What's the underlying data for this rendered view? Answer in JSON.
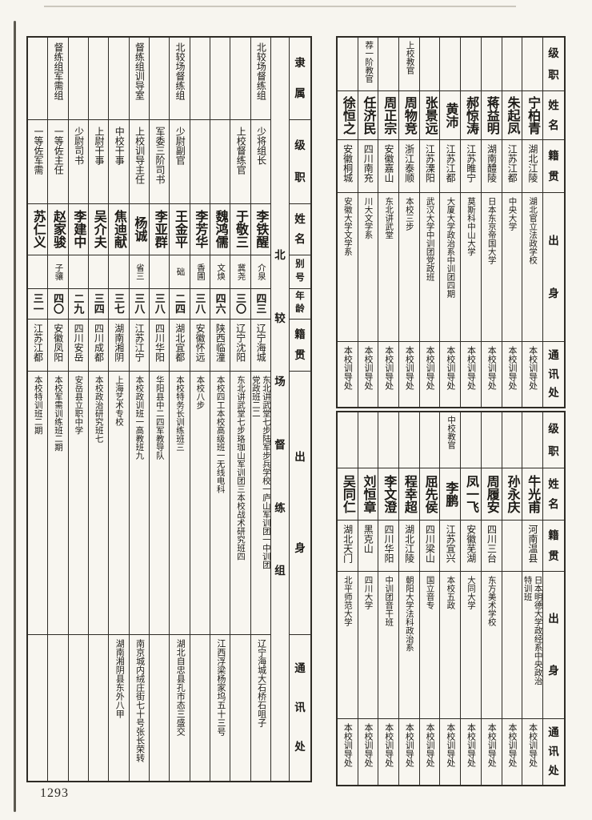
{
  "page": {
    "number": "1293"
  },
  "left_table": {
    "section_label": "北较场督练组",
    "headers": [
      "隶属",
      "级职",
      "姓名",
      "别号",
      "年龄",
      "籍贯",
      "出身",
      "通讯处"
    ],
    "rows_right_to_left": [
      {
        "affiliation": "北较场督练组",
        "rank": "少将组长",
        "name": "李铁醒",
        "alias": "介泉",
        "age": "四三",
        "origin": "辽宁海城",
        "background": "东北讲武堂七步陆军步兵学校一庐山军训团一中训团|党政班二二",
        "contact": "辽宁海城大石桥石咀子"
      },
      {
        "affiliation": "",
        "rank": "上校督练官",
        "name": "于敬三",
        "alias": "冀尧",
        "age": "三〇",
        "origin": "辽宁沈阳",
        "background": "东北讲武堂七步珞珈山军训团三本校战术研究班四",
        "contact": ""
      },
      {
        "affiliation": "",
        "rank": "",
        "name": "魏鸿儒",
        "alias": "文焕",
        "age": "四六",
        "origin": "陕西临潼",
        "background": "本校四工本校高级班一无线电科",
        "contact": "江西浮梁杨家坞五十三号"
      },
      {
        "affiliation": "",
        "rank": "",
        "name": "李芳华",
        "alias": "香圃",
        "age": "三八",
        "origin": "安徽怀远",
        "background": "本校八步",
        "contact": ""
      },
      {
        "affiliation": "北较场督练组",
        "rank": "少尉副官",
        "name": "王金平",
        "alias": "础",
        "age": "二四",
        "origin": "湖北宜都",
        "background": "本校特务长训练班三",
        "contact": "湖北自忠县孔市态三盛交"
      },
      {
        "affiliation": "",
        "rank": "军委三阶司书",
        "name": "李亚群",
        "alias": "",
        "age": "三八",
        "origin": "四川华阳",
        "background": "华阳县中二四军教导队",
        "contact": ""
      },
      {
        "affiliation": "督练组训导室",
        "rank": "上校训导主任",
        "name": "杨诚",
        "alias": "省三",
        "age": "三八",
        "origin": "江苏江宁",
        "background": "本校政训班一高教班九",
        "contact": "南京城内绒庄街七十号张长荣转"
      },
      {
        "affiliation": "",
        "rank": "中校干事",
        "name": "焦迪献",
        "alias": "",
        "age": "三七",
        "origin": "湖南湘阴",
        "background": "上海艺术专校",
        "contact": "湖南湘阴县东外八甲"
      },
      {
        "affiliation": "",
        "rank": "上尉干事",
        "name": "吴介夫",
        "alias": "",
        "age": "三四",
        "origin": "四川成都",
        "background": "本校政治研究班七",
        "contact": ""
      },
      {
        "affiliation": "",
        "rank": "少尉司书",
        "name": "李建中",
        "alias": "",
        "age": "二九",
        "origin": "四川安岳",
        "background": "安岳县立职中学",
        "contact": ""
      },
      {
        "affiliation": "督练组军需组",
        "rank": "一等佐主任",
        "name": "赵家骏",
        "alias": "子骧",
        "age": "四〇",
        "origin": "安徽凤阳",
        "background": "本校军需训练班二期",
        "contact": ""
      },
      {
        "affiliation": "",
        "rank": "一等佐军需",
        "name": "苏仁义",
        "alias": "",
        "age": "三一",
        "origin": "江苏江都",
        "background": "本校特训班二期",
        "contact": ""
      }
    ]
  },
  "right_table_top": {
    "headers": [
      "级职",
      "姓名",
      "籍贯",
      "出身",
      "通讯处"
    ],
    "rows_right_to_left": [
      {
        "rank": "",
        "name": "宁柏青",
        "origin": "湖北江陵",
        "background": "湖北官立法政学校",
        "contact": "本校训导处"
      },
      {
        "rank": "",
        "name": "朱起凤",
        "origin": "江苏江都",
        "background": "中央大学",
        "contact": "本校训导处"
      },
      {
        "rank": "",
        "name": "蒋益明",
        "origin": "湖南醴陵",
        "background": "日本东京帝国大学",
        "contact": "本校训导处"
      },
      {
        "rank": "",
        "name": "郝惊涛",
        "origin": "江苏睢宁",
        "background": "莫斯科中山大学",
        "contact": "本校训导处"
      },
      {
        "rank": "",
        "name": "黄沛",
        "origin": "江苏江都",
        "background": "大厦大学政治系中训团四期",
        "contact": "本校训导处"
      },
      {
        "rank": "",
        "name": "张景远",
        "origin": "江苏溧阳",
        "background": "武汉大学中训团党政班",
        "contact": "本校训导处"
      },
      {
        "rank": "上校教官",
        "name": "周物竞",
        "origin": "浙江泰顺",
        "background": "本校三步",
        "contact": "本校训导处"
      },
      {
        "rank": "",
        "name": "周正宗",
        "origin": "安徽嘉山",
        "background": "东北讲武堂",
        "contact": "本校训导处"
      },
      {
        "rank": "荐一阶教官",
        "name": "任济民",
        "origin": "四川南充",
        "background": "川大文学系",
        "contact": "本校训导处"
      },
      {
        "rank": "",
        "name": "徐恒之",
        "origin": "安徽桐城",
        "background": "安徽大学文学系",
        "contact": "本校训导处"
      }
    ]
  },
  "right_table_bottom": {
    "headers": [
      "级职",
      "姓名",
      "籍贯",
      "出身",
      "通讯处"
    ],
    "rows_right_to_left": [
      {
        "rank": "",
        "name": "牛光甫",
        "origin": "河南温县",
        "background": "日本明德大学政经系中央政治|特训班",
        "contact": "本校训导处"
      },
      {
        "rank": "",
        "name": "孙永庆",
        "origin": "",
        "background": "",
        "contact": "本校训导处"
      },
      {
        "rank": "",
        "name": "周履安",
        "origin": "四川三台",
        "background": "东方美术学校",
        "contact": "本校训导处"
      },
      {
        "rank": "",
        "name": "凤一飞",
        "origin": "安徽芜湖",
        "background": "大同大学",
        "contact": "本校训导处"
      },
      {
        "rank": "中校教官",
        "name": "李鹏",
        "origin": "江苏宜兴",
        "background": "本校五政",
        "contact": "本校训导处"
      },
      {
        "rank": "",
        "name": "屈先侯",
        "origin": "四川梁山",
        "background": "国立音专",
        "contact": "本校训导处"
      },
      {
        "rank": "",
        "name": "程幸超",
        "origin": "湖北江陵",
        "background": "朝阳大学法科政治系",
        "contact": "本校训导处"
      },
      {
        "rank": "",
        "name": "李文澄",
        "origin": "四川华阳",
        "background": "中训团音干班",
        "contact": "本校训导处"
      },
      {
        "rank": "",
        "name": "刘恒章",
        "origin": "黑克山",
        "background": "四川大学",
        "contact": "本校训导处"
      },
      {
        "rank": "",
        "name": "吴同仁",
        "origin": "湖北天门",
        "background": "北平师范大学",
        "contact": "本校训导处"
      }
    ]
  }
}
